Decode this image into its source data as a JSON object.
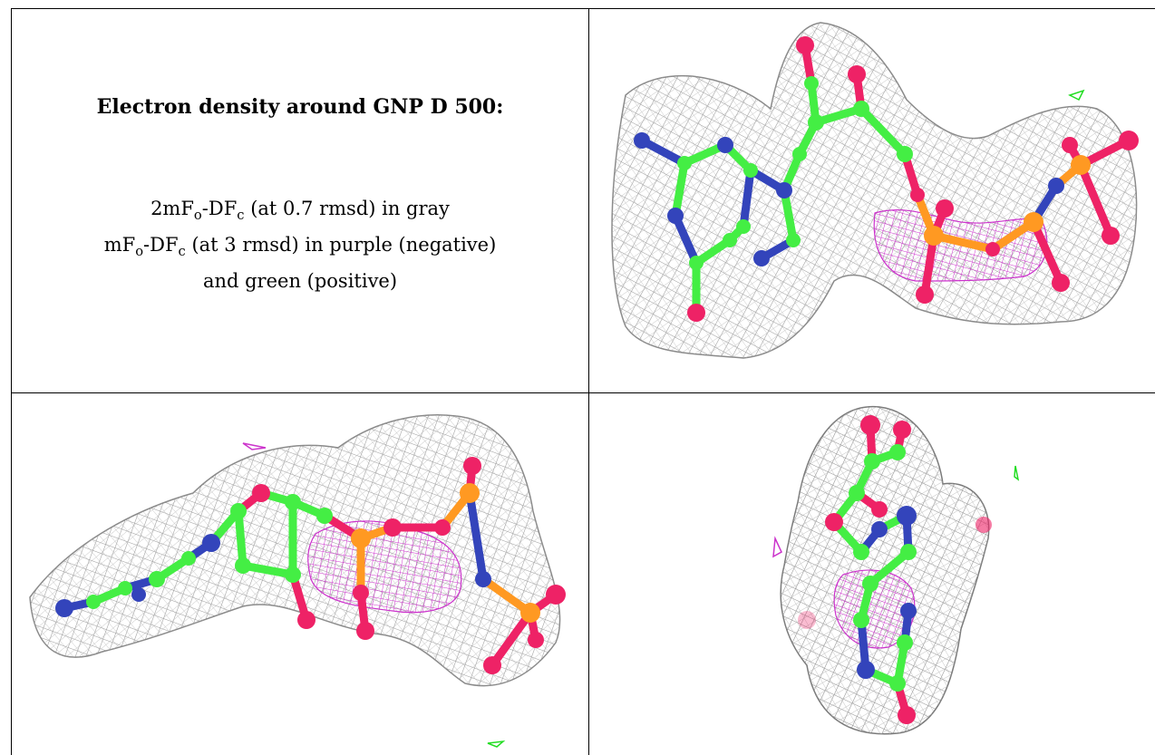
{
  "caption": {
    "title": "Electron density around GNP D 500:",
    "line1_prefix": "2mF",
    "line1_sub1": "o",
    "line1_mid": "-DF",
    "line1_sub2": "c",
    "line1_rest": " (at 0.7 rmsd) in gray",
    "line2_prefix": "mF",
    "line2_sub1": "o",
    "line2_mid": "-DF",
    "line2_sub2": "c",
    "line2_rest": " (at 3 rmsd) in purple (negative)",
    "line3": "and green (positive)"
  },
  "colors": {
    "mesh_gray": "#9a9a9a",
    "mesh_purple": "#cc33cc",
    "mesh_green": "#22dd22",
    "atom_carbon": "#44ee44",
    "atom_nitrogen": "#3344bb",
    "atom_oxygen": "#ee2266",
    "atom_phosphorus": "#ff9922",
    "grid_line": "#000000"
  },
  "views": [
    {
      "name": "top-right-view"
    },
    {
      "name": "bottom-left-view"
    },
    {
      "name": "bottom-right-view"
    }
  ]
}
